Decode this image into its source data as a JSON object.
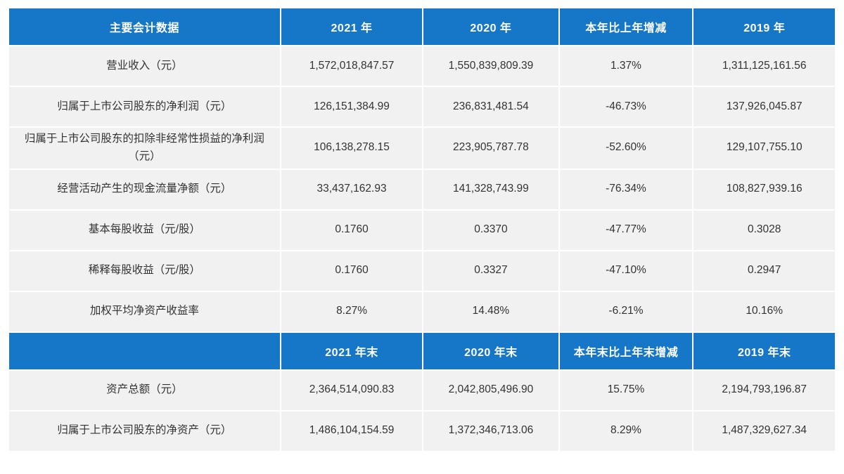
{
  "colors": {
    "header_bg": "#1677c8",
    "header_text": "#ffffff",
    "cell_bg": "#f1f1f1",
    "cell_text": "#333333",
    "page_bg": "#ffffff"
  },
  "table": {
    "header1": [
      "主要会计数据",
      "2021 年",
      "2020 年",
      "本年比上年增减",
      "2019 年"
    ],
    "rows1": [
      [
        "营业收入（元）",
        "1,572,018,847.57",
        "1,550,839,809.39",
        "1.37%",
        "1,311,125,161.56"
      ],
      [
        "归属于上市公司股东的净利润（元）",
        "126,151,384.99",
        "236,831,481.54",
        "-46.73%",
        "137,926,045.87"
      ],
      [
        "归属于上市公司股东的扣除非经常性损益的净利润（元）",
        "106,138,278.15",
        "223,905,787.78",
        "-52.60%",
        "129,107,755.10"
      ],
      [
        "经营活动产生的现金流量净额（元）",
        "33,437,162.93",
        "141,328,743.99",
        "-76.34%",
        "108,827,939.16"
      ],
      [
        "基本每股收益（元/股）",
        "0.1760",
        "0.3370",
        "-47.77%",
        "0.3028"
      ],
      [
        "稀释每股收益（元/股）",
        "0.1760",
        "0.3327",
        "-47.10%",
        "0.2947"
      ],
      [
        "加权平均净资产收益率",
        "8.27%",
        "14.48%",
        "-6.21%",
        "10.16%"
      ]
    ],
    "header2": [
      "",
      "2021 年末",
      "2020 年末",
      "本年末比上年末增减",
      "2019 年末"
    ],
    "rows2": [
      [
        "资产总额（元）",
        "2,364,514,090.83",
        "2,042,805,496.90",
        "15.75%",
        "2,194,793,196.87"
      ],
      [
        "归属于上市公司股东的净资产（元）",
        "1,486,104,154.59",
        "1,372,346,713.06",
        "8.29%",
        "1,487,329,627.34"
      ]
    ]
  }
}
